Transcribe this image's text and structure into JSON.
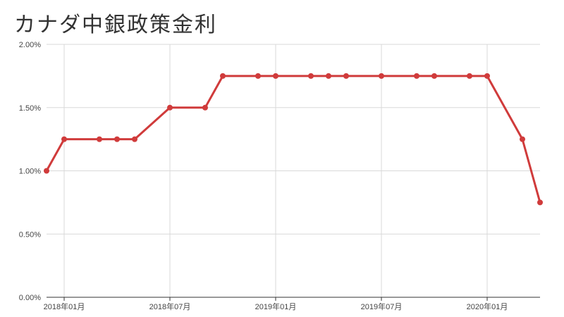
{
  "chart_data": {
    "type": "line",
    "title": "カナダ中銀政策金利",
    "xlabel": "",
    "ylabel": "",
    "ylim": [
      0,
      2
    ],
    "y_ticks": [
      "0.00%",
      "0.50%",
      "1.00%",
      "1.50%",
      "2.00%"
    ],
    "y_tick_values": [
      0,
      0.5,
      1,
      1.5,
      2
    ],
    "x_ticks": [
      "2018年01月",
      "2018年07月",
      "2019年01月",
      "2019年07月",
      "2020年01月"
    ],
    "x_tick_values": [
      "2018-01",
      "2018-07",
      "2019-01",
      "2019-07",
      "2020-01"
    ],
    "xlim": [
      "2017-12",
      "2020-04"
    ],
    "grid": true,
    "series": [
      {
        "color": "#d03b3b",
        "points": [
          {
            "x": "2017-12",
            "y": 1.0
          },
          {
            "x": "2018-01",
            "y": 1.25
          },
          {
            "x": "2018-03",
            "y": 1.25
          },
          {
            "x": "2018-04",
            "y": 1.25
          },
          {
            "x": "2018-05",
            "y": 1.25
          },
          {
            "x": "2018-07",
            "y": 1.5
          },
          {
            "x": "2018-09",
            "y": 1.5
          },
          {
            "x": "2018-10",
            "y": 1.75
          },
          {
            "x": "2018-12",
            "y": 1.75
          },
          {
            "x": "2019-01",
            "y": 1.75
          },
          {
            "x": "2019-03",
            "y": 1.75
          },
          {
            "x": "2019-04",
            "y": 1.75
          },
          {
            "x": "2019-05",
            "y": 1.75
          },
          {
            "x": "2019-07",
            "y": 1.75
          },
          {
            "x": "2019-09",
            "y": 1.75
          },
          {
            "x": "2019-10",
            "y": 1.75
          },
          {
            "x": "2019-12",
            "y": 1.75
          },
          {
            "x": "2020-01",
            "y": 1.75
          },
          {
            "x": "2020-03",
            "y": 1.25
          },
          {
            "x": "2020-04",
            "y": 0.75
          }
        ]
      }
    ]
  }
}
